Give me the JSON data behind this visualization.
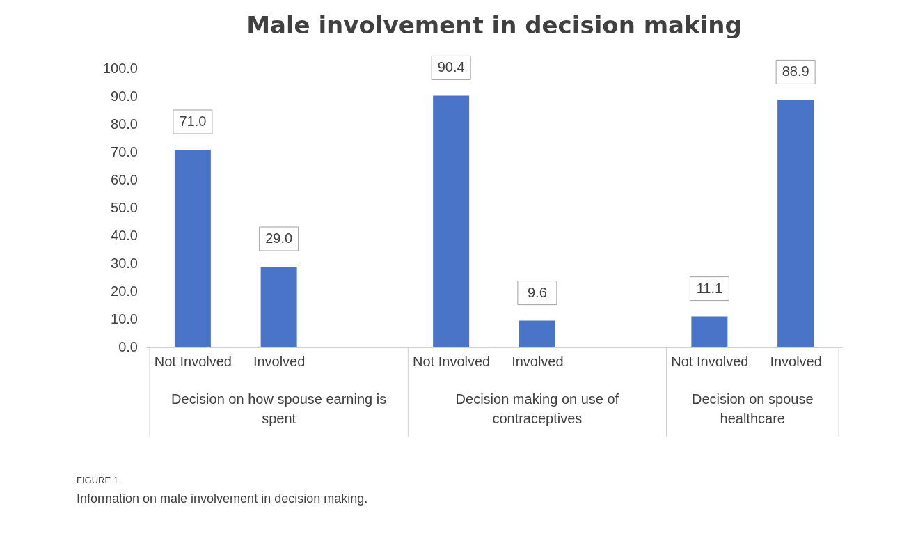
{
  "chart_data": {
    "type": "bar",
    "title": "Male involvement in decision making",
    "categories": [
      "Not Involved",
      "Involved",
      null,
      "Not Involved",
      "Involved",
      null,
      "Not Involved",
      "Involved"
    ],
    "values": [
      71.0,
      29.0,
      null,
      90.4,
      9.6,
      null,
      11.1,
      88.9
    ],
    "color": "#4a74c8",
    "ylim": [
      0,
      100
    ],
    "yticks": [
      {
        "value": 0,
        "label": "0.0"
      },
      {
        "value": 10,
        "label": "10.0"
      },
      {
        "value": 20,
        "label": "20.0"
      },
      {
        "value": 30,
        "label": "30.0"
      },
      {
        "value": 40,
        "label": "40.0"
      },
      {
        "value": 50,
        "label": "50.0"
      },
      {
        "value": 60,
        "label": "60.0"
      },
      {
        "value": 70,
        "label": "70.0"
      },
      {
        "value": 80,
        "label": "80.0"
      },
      {
        "value": 90,
        "label": "90.0"
      },
      {
        "value": 100,
        "label": "100.0"
      }
    ],
    "value_labels": [
      "71.0",
      "29.0",
      null,
      "90.4",
      "9.6",
      null,
      "11.1",
      "88.9"
    ],
    "grid": false,
    "annotations": [
      "Decision on how spouse earning is spent",
      "Decision making on use of contraceptives",
      "Decision on spouse healthcare",
      "FIGURE 1",
      "Information on male involvement in decision making."
    ]
  }
}
